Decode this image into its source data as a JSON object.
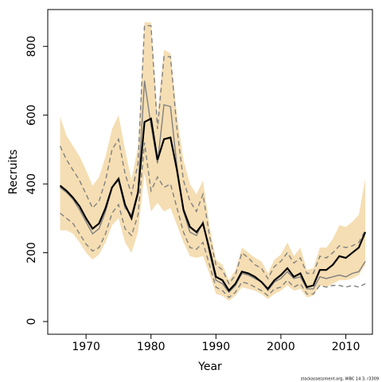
{
  "chart_data": {
    "type": "line",
    "x_label": "Year",
    "y_label": "Recruits",
    "note": "stockassessment.org, WBC 14 3, r3309",
    "x": [
      1966,
      1967,
      1968,
      1969,
      1970,
      1971,
      1972,
      1973,
      1974,
      1975,
      1976,
      1977,
      1978,
      1979,
      1980,
      1981,
      1982,
      1983,
      1984,
      1985,
      1986,
      1987,
      1988,
      1989,
      1990,
      1991,
      1992,
      1993,
      1994,
      1995,
      1996,
      1997,
      1998,
      1999,
      2000,
      2001,
      2002,
      2003,
      2004,
      2005,
      2006,
      2007,
      2008,
      2009,
      2010,
      2011,
      2012,
      2013
    ],
    "band": {
      "color": "#f5deb3",
      "upper": [
        595,
        540,
        510,
        480,
        440,
        395,
        420,
        480,
        560,
        600,
        500,
        410,
        510,
        870,
        870,
        600,
        790,
        780,
        600,
        470,
        400,
        370,
        410,
        280,
        180,
        165,
        120,
        150,
        215,
        200,
        185,
        175,
        140,
        180,
        195,
        230,
        190,
        215,
        150,
        155,
        215,
        215,
        240,
        280,
        275,
        290,
        310,
        415
      ],
      "lower": [
        265,
        265,
        255,
        230,
        200,
        180,
        195,
        230,
        280,
        300,
        230,
        200,
        260,
        430,
        320,
        345,
        320,
        330,
        280,
        230,
        190,
        185,
        190,
        140,
        80,
        75,
        60,
        75,
        100,
        95,
        90,
        80,
        65,
        80,
        90,
        105,
        90,
        95,
        70,
        75,
        105,
        100,
        110,
        120,
        120,
        125,
        135,
        165
      ]
    },
    "series": [
      {
        "color": "#808080",
        "dash": true,
        "values": [
          510,
          470,
          440,
          410,
          370,
          330,
          350,
          410,
          500,
          530,
          430,
          370,
          460,
          860,
          860,
          560,
          770,
          770,
          560,
          410,
          350,
          320,
          370,
          250,
          165,
          150,
          110,
          135,
          200,
          185,
          165,
          155,
          125,
          160,
          175,
          200,
          170,
          185,
          140,
          140,
          190,
          185,
          200,
          220,
          215,
          220,
          230,
          265
        ]
      },
      {
        "color": "#808080",
        "dash": true,
        "values": [
          315,
          300,
          285,
          255,
          225,
          205,
          215,
          255,
          315,
          340,
          270,
          250,
          310,
          520,
          380,
          420,
          390,
          400,
          330,
          260,
          215,
          210,
          230,
          165,
          100,
          90,
          70,
          85,
          115,
          110,
          100,
          90,
          75,
          95,
          100,
          120,
          100,
          110,
          80,
          80,
          105,
          100,
          105,
          105,
          100,
          105,
          100,
          110
        ]
      },
      {
        "color": "#808080",
        "dash": false,
        "values": [
          390,
          375,
          355,
          325,
          290,
          255,
          270,
          320,
          390,
          410,
          330,
          310,
          380,
          700,
          570,
          460,
          630,
          625,
          450,
          320,
          260,
          250,
          290,
          200,
          120,
          110,
          85,
          105,
          140,
          135,
          125,
          115,
          90,
          115,
          125,
          145,
          125,
          130,
          95,
          95,
          130,
          125,
          130,
          135,
          130,
          140,
          145,
          175
        ]
      },
      {
        "color": "#000000",
        "dash": false,
        "values": [
          395,
          380,
          360,
          335,
          300,
          270,
          285,
          330,
          390,
          415,
          340,
          300,
          375,
          580,
          590,
          470,
          530,
          535,
          440,
          325,
          275,
          260,
          285,
          210,
          130,
          120,
          90,
          110,
          145,
          140,
          130,
          115,
          95,
          120,
          135,
          155,
          130,
          140,
          100,
          105,
          150,
          150,
          165,
          190,
          185,
          200,
          215,
          260
        ]
      }
    ],
    "xlim": [
      1964.1,
      2014.1
    ],
    "xticks": [
      1970,
      1980,
      1990,
      2000,
      2010
    ],
    "ylim": [
      -37,
      907
    ],
    "yticks": [
      0,
      200,
      400,
      600,
      800
    ]
  }
}
